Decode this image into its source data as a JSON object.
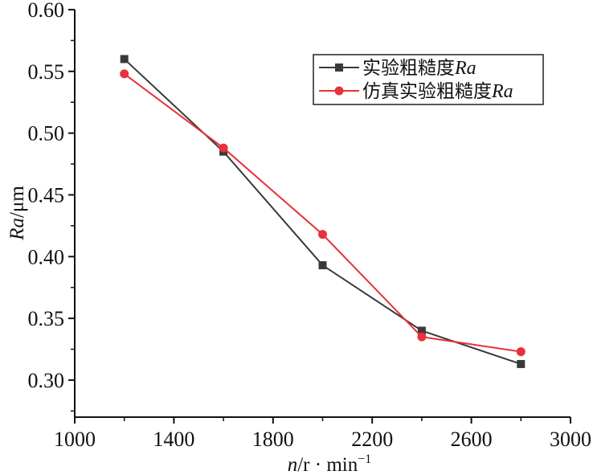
{
  "chart_data": {
    "type": "line",
    "title": "",
    "xlabel": "n/r · min⁻¹",
    "ylabel": "Ra/μm",
    "xlim": [
      1000,
      3000
    ],
    "ylim": [
      0.27,
      0.6
    ],
    "x_ticks": [
      1000,
      1400,
      1800,
      2200,
      2600,
      3000
    ],
    "x_tick_labels": [
      "1000",
      "1400",
      "1800",
      "2200",
      "2600",
      "3000"
    ],
    "y_ticks": [
      0.3,
      0.35,
      0.4,
      0.45,
      0.5,
      0.55,
      0.6
    ],
    "y_tick_labels": [
      "0.30",
      "0.35",
      "0.40",
      "0.45",
      "0.50",
      "0.55",
      "0.60"
    ],
    "grid": false,
    "legend_position": "top-right",
    "x": [
      1200,
      1600,
      2000,
      2400,
      2800
    ],
    "series": [
      {
        "name": "实验粗糙度Ra",
        "name_parts": [
          "实验粗糙度",
          "Ra"
        ],
        "color": "#3a3a3a",
        "marker": "square",
        "values": [
          0.56,
          0.485,
          0.393,
          0.34,
          0.313
        ]
      },
      {
        "name": "仿真实验粗糙度Ra",
        "name_parts": [
          "仿真实验粗糙度",
          "Ra"
        ],
        "color": "#e8313b",
        "marker": "circle",
        "values": [
          0.548,
          0.488,
          0.418,
          0.335,
          0.323
        ]
      }
    ]
  }
}
